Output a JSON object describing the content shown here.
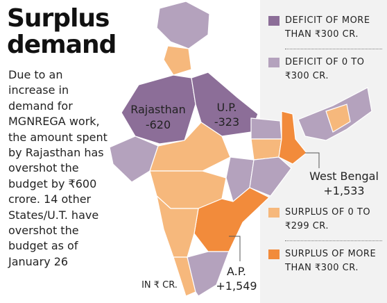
{
  "title": "Surplus demand",
  "description": "Due to an increase in demand for MGNREGA work, the amount spent by Rajasthan has overshot the budget by ₹600 crore. 14 other States/U.T. have overshot the budget as of January 26",
  "unit_note": "IN ₹ CR.",
  "legend": [
    {
      "label": "DEFICIT OF MORE THAN ₹300 CR.",
      "color": "#8c6e98"
    },
    {
      "label": "DEFICIT OF 0 TO ₹300 CR.",
      "color": "#b4a2bd"
    },
    {
      "label": "SURPLUS OF 0 TO ₹299 CR.",
      "color": "#f6b87c"
    },
    {
      "label": "SURPLUS OF MORE THAN ₹300 CR.",
      "color": "#f28b3b"
    }
  ],
  "regions": [
    {
      "name": "Rajasthan",
      "value": "-620"
    },
    {
      "name": "U.P.",
      "value": "-323"
    },
    {
      "name": "West Bengal",
      "value": "+1,533"
    },
    {
      "name": "A.P.",
      "value": "+1,549"
    }
  ]
}
